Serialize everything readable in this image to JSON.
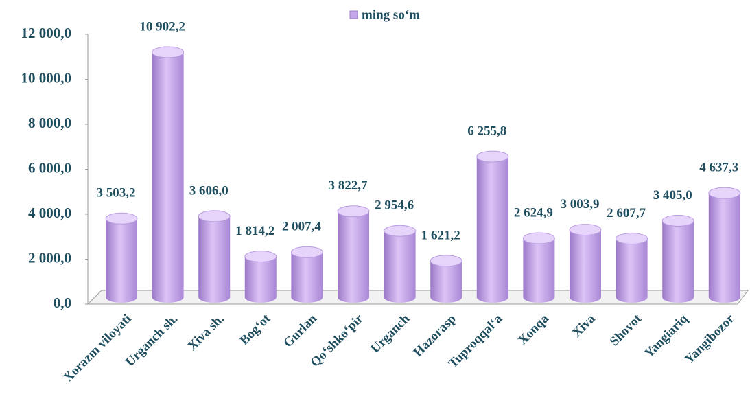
{
  "chart_data": {
    "type": "bar",
    "categories": [
      "Xorazm viloyati",
      "Urganch sh.",
      "Xiva sh.",
      "Bog‘ot",
      "Gurlan",
      "Qo‘shko‘pir",
      "Urganch",
      "Hazorasp",
      "Tuproqqal‘a",
      "Xonqa",
      "Xiva",
      "Shovot",
      "Yangiariq",
      "Yangibozor"
    ],
    "series": [
      {
        "name": "ming so‘m",
        "color": "#c7a7ec",
        "values": [
          3503.2,
          10902.2,
          3606.0,
          1814.2,
          2007.4,
          3822.7,
          2954.6,
          1621.2,
          6255.8,
          2624.9,
          3003.9,
          2607.7,
          3405.0,
          4637.3
        ],
        "value_labels": [
          "3 503,2",
          "10 902,2",
          "3 606,0",
          "1 814,2",
          "2 007,4",
          "3 822,7",
          "2 954,6",
          "1 621,2",
          "6 255,8",
          "2 624,9",
          "3 003,9",
          "2 607,7",
          "3 405,0",
          "4 637,3"
        ]
      }
    ],
    "ylim": [
      0,
      12000
    ],
    "yticks": [
      {
        "value": 0,
        "label": "0,0"
      },
      {
        "value": 2000,
        "label": "2 000,0"
      },
      {
        "value": 4000,
        "label": "4 000,0"
      },
      {
        "value": 6000,
        "label": "6 000,0"
      },
      {
        "value": 8000,
        "label": "8 000,0"
      },
      {
        "value": 10000,
        "label": "10 000,0"
      },
      {
        "value": 12000,
        "label": "12 000,0"
      }
    ],
    "legend": "top"
  }
}
